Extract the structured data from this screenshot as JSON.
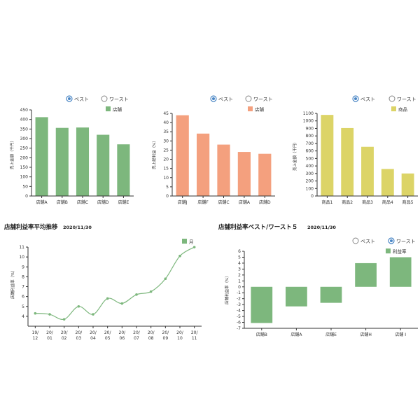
{
  "colors": {
    "green": "#7db77d",
    "salmon": "#f4a07e",
    "yellow": "#dcd467",
    "radio_selected": "#4a86c5",
    "line": "#7db77d"
  },
  "radio": {
    "best": "ベスト",
    "worst": "ワースト"
  },
  "chart_data": [
    {
      "type": "bar",
      "radio_selected": "best",
      "legend": "店舗",
      "ylabel": "売上金額（千円）",
      "categories": [
        "店舗A",
        "店舗B",
        "店舗C",
        "店舗D",
        "店舗E"
      ],
      "values": [
        412,
        356,
        358,
        320,
        270
      ],
      "ylim": [
        0,
        450
      ],
      "yticks": [
        0,
        50,
        100,
        150,
        200,
        250,
        300,
        350,
        400,
        450
      ],
      "color": "#7db77d"
    },
    {
      "type": "bar",
      "radio_selected": "best",
      "legend": "店舗",
      "ylabel": "売上総利益（%）",
      "categories": [
        "店舗J",
        "店舗F",
        "店舗C",
        "店舗A",
        "店舗D"
      ],
      "values": [
        44,
        34,
        28,
        24,
        23
      ],
      "ylim": [
        0,
        45
      ],
      "yticks": [
        0,
        5,
        10,
        15,
        20,
        25,
        30,
        35,
        40,
        45
      ],
      "color": "#f4a07e"
    },
    {
      "type": "bar",
      "radio_selected": "best",
      "legend": "商品",
      "ylabel": "売上金額（千円）",
      "categories": [
        "商品1",
        "商品2",
        "商品3",
        "商品4",
        "商品5"
      ],
      "values": [
        1080,
        905,
        655,
        360,
        300
      ],
      "ylim": [
        0,
        1100
      ],
      "yticks": [
        0,
        100,
        200,
        300,
        400,
        500,
        600,
        700,
        800,
        900,
        1000,
        1100
      ],
      "color": "#dcd467"
    },
    {
      "type": "line",
      "title": "店舗利益率平均推移",
      "date": "2020/11/30",
      "legend": "月",
      "ylabel": "店舗利益率（%）",
      "categories": [
        "19/\n12",
        "20/\n01",
        "20/\n02",
        "20/\n03",
        "20/\n04",
        "20/\n05",
        "20/\n06",
        "20/\n07",
        "20/\n08",
        "20/\n09",
        "20/\n10",
        "20/\n11"
      ],
      "values": [
        4.3,
        4.2,
        3.7,
        5.0,
        4.2,
        5.8,
        5.3,
        6.2,
        6.5,
        7.8,
        10.1,
        11.0
      ],
      "ylim": [
        3,
        11
      ],
      "yticks": [
        4,
        5,
        6,
        7,
        8,
        9,
        10,
        11
      ],
      "color": "#7db77d"
    },
    {
      "type": "bar",
      "title": "店舗利益率ベスト/ワースト５",
      "date": "2020/11/30",
      "radio_selected": "worst",
      "legend": "利益率",
      "ylabel": "店舗利益率（%）",
      "categories": [
        "店舗B",
        "店舗A",
        "店舗E",
        "店舗H",
        "店舗 I"
      ],
      "values": [
        -6.1,
        -3.3,
        -2.7,
        4.0,
        5.0
      ],
      "ylim": [
        -7,
        6
      ],
      "yticks": [
        -7,
        -6,
        -5,
        -4,
        -3,
        -2,
        -1,
        0,
        1,
        2,
        3,
        4,
        5,
        6
      ],
      "color": "#7db77d"
    }
  ]
}
